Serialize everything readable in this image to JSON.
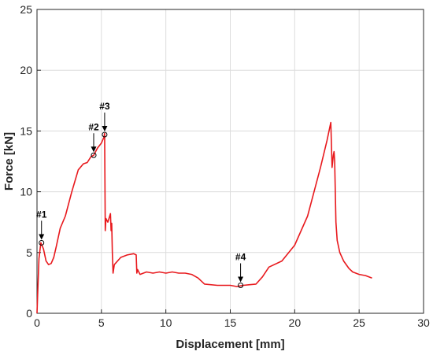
{
  "chart_data": {
    "type": "line",
    "title": "",
    "xlabel": "Displacement [mm]",
    "ylabel": "Force [kN]",
    "xlim": [
      0,
      30
    ],
    "ylim": [
      0,
      25
    ],
    "xticks": [
      0,
      5,
      10,
      15,
      20,
      25,
      30
    ],
    "yticks": [
      0,
      5,
      10,
      15,
      20,
      25
    ],
    "grid": true,
    "colors": {
      "line": "#e8191d",
      "grid": "#dcdcdc",
      "axis": "#262626",
      "annotation": "#000000"
    },
    "series": [
      {
        "x": [
          0,
          0.05,
          0.15,
          0.3,
          0.5,
          0.7,
          0.9,
          1.1,
          1.3,
          1.5,
          1.8,
          2.2,
          2.7,
          3.2,
          3.6,
          3.9,
          4.2,
          4.4,
          4.7,
          5.0,
          5.2,
          5.25,
          5.3,
          5.35,
          5.5,
          5.7,
          5.75,
          5.8,
          5.85,
          5.9,
          6.0,
          6.5,
          7.0,
          7.5,
          7.7,
          7.75,
          7.8,
          8.0,
          8.5,
          9.0,
          9.5,
          10.0,
          10.5,
          11.0,
          11.5,
          12.0,
          12.5,
          13.0,
          14.0,
          15.0,
          15.5,
          16.0,
          16.5,
          17.0,
          17.5,
          18.0,
          19.0,
          20.0,
          21.0,
          22.0,
          22.5,
          22.8,
          22.9,
          23.0,
          23.05,
          23.1,
          23.15,
          23.2,
          23.3,
          23.5,
          23.8,
          24.2,
          24.5,
          25.0,
          25.5,
          26.0
        ],
        "values": [
          0,
          1.5,
          4.5,
          5.8,
          5.3,
          4.3,
          4.0,
          4.1,
          4.6,
          5.5,
          7.0,
          8.0,
          10.0,
          11.8,
          12.3,
          12.4,
          12.9,
          13.0,
          13.6,
          14.0,
          14.5,
          14.8,
          6.8,
          7.8,
          7.5,
          8.2,
          6.8,
          7.4,
          5.0,
          3.3,
          4.0,
          4.6,
          4.8,
          4.9,
          4.8,
          3.3,
          3.6,
          3.2,
          3.4,
          3.3,
          3.4,
          3.3,
          3.4,
          3.3,
          3.3,
          3.2,
          2.9,
          2.4,
          2.3,
          2.3,
          2.2,
          2.3,
          2.35,
          2.4,
          3.0,
          3.8,
          4.3,
          5.6,
          8.0,
          12.0,
          14.2,
          15.7,
          12.0,
          13.0,
          13.3,
          12.5,
          10.0,
          7.5,
          6.0,
          5.0,
          4.3,
          3.7,
          3.4,
          3.2,
          3.1,
          2.9
        ]
      }
    ],
    "annotations": [
      {
        "label": "#1",
        "x": 0.35,
        "y": 5.8
      },
      {
        "label": "#2",
        "x": 4.4,
        "y": 13.0
      },
      {
        "label": "#3",
        "x": 5.25,
        "y": 14.7
      },
      {
        "label": "#4",
        "x": 15.8,
        "y": 2.3
      }
    ]
  }
}
